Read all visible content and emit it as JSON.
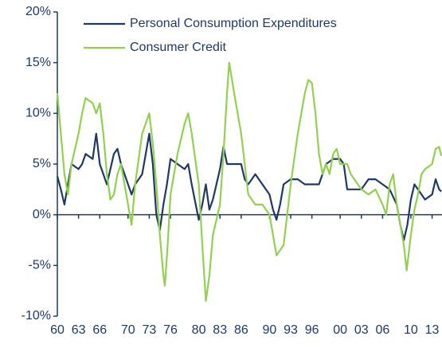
{
  "chart_data": {
    "type": "line",
    "xlim": [
      1960,
      2014.4
    ],
    "xticks": [
      {
        "value": 1960,
        "label": "60"
      },
      {
        "value": 1963,
        "label": "63"
      },
      {
        "value": 1966,
        "label": "66"
      },
      {
        "value": 1970,
        "label": "70"
      },
      {
        "value": 1973,
        "label": "73"
      },
      {
        "value": 1976,
        "label": "76"
      },
      {
        "value": 1980,
        "label": "80"
      },
      {
        "value": 1983,
        "label": "83"
      },
      {
        "value": 1986,
        "label": "86"
      },
      {
        "value": 1990,
        "label": "90"
      },
      {
        "value": 1993,
        "label": "93"
      },
      {
        "value": 1996,
        "label": "96"
      },
      {
        "value": 2000,
        "label": "00"
      },
      {
        "value": 2003,
        "label": "03"
      },
      {
        "value": 2006,
        "label": "06"
      },
      {
        "value": 2010,
        "label": "10"
      },
      {
        "value": 2013,
        "label": "13"
      }
    ],
    "ylim": [
      -10,
      20
    ],
    "yticks": [
      {
        "value": -10,
        "label": "-10%"
      },
      {
        "value": -5,
        "label": "-5%"
      },
      {
        "value": 0,
        "label": "0%"
      },
      {
        "value": 5,
        "label": "5%"
      },
      {
        "value": 10,
        "label": "10%"
      },
      {
        "value": 15,
        "label": "15%"
      },
      {
        "value": 20,
        "label": "20%"
      }
    ],
    "grid": false,
    "legend": "top",
    "series": [
      {
        "name": "Personal Consumption Expenditures",
        "color": "#1f3864",
        "x": [
          1960,
          1960.5,
          1961,
          1961.5,
          1962,
          1963,
          1963.5,
          1964,
          1965,
          1965.5,
          1966,
          1967,
          1968,
          1968.5,
          1969,
          1970,
          1970.5,
          1971,
          1972,
          1972.5,
          1973,
          1973.5,
          1974,
          1974.5,
          1975,
          1975.5,
          1976,
          1977,
          1978,
          1978.5,
          1979,
          1980,
          1980.5,
          1981,
          1981.5,
          1982,
          1983,
          1983.5,
          1984,
          1985,
          1986,
          1986.5,
          1987,
          1988,
          1989,
          1990,
          1990.5,
          1991,
          1991.5,
          1992,
          1993,
          1994,
          1995,
          1996,
          1997,
          1998,
          1999,
          2000,
          2000.5,
          2001,
          2002,
          2003,
          2004,
          2005,
          2006,
          2007,
          2008,
          2008.5,
          2009,
          2009.5,
          2010,
          2010.5,
          2011,
          2012,
          2013,
          2013.5,
          2014,
          2014.3
        ],
        "values": [
          3.8,
          2.5,
          1,
          3,
          5,
          4.5,
          5,
          6,
          5.5,
          8,
          5,
          3,
          6,
          6.5,
          5,
          3,
          2,
          3,
          4,
          6,
          8,
          5,
          0,
          -1.5,
          1,
          3,
          5.5,
          5,
          4.5,
          5,
          3,
          -0.5,
          1,
          3,
          0.5,
          1.5,
          4.5,
          6.7,
          5,
          5,
          5,
          3.5,
          3,
          4,
          3,
          2,
          0.5,
          -0.5,
          1,
          3,
          3.5,
          3.5,
          3,
          3,
          3,
          5,
          5.5,
          5.5,
          5,
          2.5,
          2.5,
          2.5,
          3.5,
          3.5,
          3,
          2.5,
          1,
          -1,
          -2.5,
          -1,
          1.5,
          3,
          2.5,
          1.5,
          2,
          3.5,
          2.5,
          2.3
        ]
      },
      {
        "name": "Consumer Credit",
        "color": "#92d050",
        "x": [
          1960,
          1960.5,
          1961,
          1961.5,
          1962,
          1963,
          1963.5,
          1964,
          1965,
          1965.5,
          1966,
          1966.5,
          1967,
          1967.5,
          1968,
          1968.5,
          1969,
          1970,
          1970.5,
          1971,
          1972,
          1972.5,
          1973,
          1973.5,
          1974,
          1974.5,
          1975,
          1975.2,
          1975.6,
          1976,
          1977,
          1978,
          1978.5,
          1979,
          1980,
          1980.5,
          1981,
          1981.5,
          1982,
          1983,
          1983.5,
          1984,
          1984.3,
          1985,
          1986,
          1986.5,
          1987,
          1988,
          1989,
          1990,
          1990.5,
          1991,
          1991.5,
          1992,
          1992.5,
          1993,
          1994,
          1995,
          1995.5,
          1996,
          1996.5,
          1997,
          1997.5,
          1998,
          1998.5,
          1999,
          1999.5,
          2000,
          2001,
          2001.5,
          2002,
          2003,
          2004,
          2005,
          2006,
          2006.5,
          2007,
          2007.5,
          2008,
          2009,
          2009.4,
          2010,
          2010.5,
          2011,
          2011.5,
          2012,
          2013,
          2013.5,
          2014,
          2014.3
        ],
        "values": [
          12,
          8,
          4,
          2,
          5,
          8,
          10,
          11.5,
          11,
          10,
          11,
          8,
          4,
          1.5,
          2,
          4,
          5,
          1,
          -1,
          3,
          8,
          9,
          10,
          7,
          3,
          -2,
          -6,
          -7,
          -3,
          2,
          6,
          9,
          10,
          8,
          3,
          -3,
          -8.5,
          -6,
          -2,
          1,
          6,
          12,
          15,
          12,
          8,
          5,
          2,
          1,
          1,
          0,
          -2,
          -4,
          -3.5,
          -3,
          0,
          3,
          8,
          12,
          13.3,
          13,
          10,
          6,
          4,
          5,
          4,
          6,
          6.5,
          5,
          5,
          4,
          3.5,
          2.5,
          2,
          2.5,
          1,
          0,
          3,
          4,
          1,
          -3,
          -5.5,
          -2,
          0.5,
          2,
          4,
          4.5,
          5,
          6.5,
          6.7,
          5.8
        ]
      }
    ]
  }
}
